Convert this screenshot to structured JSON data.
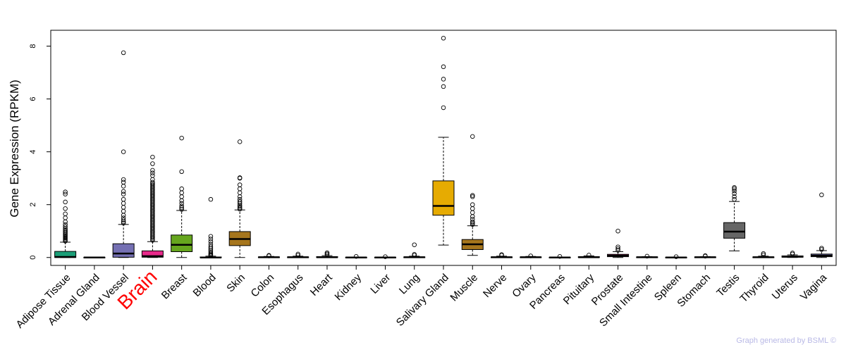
{
  "chart_data": {
    "type": "box",
    "ylabel": "Gene Expression (RPKM)",
    "ylim": [
      -0.3,
      8.6
    ],
    "yticks": [
      0,
      2,
      4,
      6,
      8
    ],
    "highlight": {
      "category": "Brain",
      "color": "#ff0000"
    },
    "categories": [
      {
        "name": "Adipose Tissue",
        "color": "#1b9e77",
        "q1": 0.0,
        "median": 0.02,
        "q3": 0.23,
        "whisker_low": 0.0,
        "whisker_high": 0.58,
        "outliers": [
          0.62,
          0.66,
          0.7,
          0.74,
          0.78,
          0.82,
          0.86,
          0.9,
          0.95,
          1.0,
          1.05,
          1.1,
          1.17,
          1.25,
          1.35,
          1.5,
          1.65,
          1.85,
          2.1,
          2.4,
          2.48
        ]
      },
      {
        "name": "Adrenal Gland",
        "color": "#d95f02",
        "q1": 0.0,
        "median": 0.0,
        "q3": 0.01,
        "whisker_low": 0.0,
        "whisker_high": 0.02,
        "outliers": []
      },
      {
        "name": "Blood Vessel",
        "color": "#7570b3",
        "q1": 0.01,
        "median": 0.15,
        "q3": 0.52,
        "whisker_low": 0.0,
        "whisker_high": 1.25,
        "outliers": [
          1.3,
          1.35,
          1.42,
          1.5,
          1.6,
          1.75,
          1.9,
          2.05,
          2.2,
          2.4,
          2.5,
          2.7,
          2.85,
          2.95,
          4.0,
          7.75
        ]
      },
      {
        "name": "Brain",
        "color": "#e7298a",
        "q1": 0.01,
        "median": 0.05,
        "q3": 0.25,
        "whisker_low": 0.0,
        "whisker_high": 0.6,
        "outliers": [
          0.65,
          0.7,
          0.75,
          0.8,
          0.85,
          0.9,
          0.95,
          1.0,
          1.05,
          1.1,
          1.15,
          1.2,
          1.25,
          1.3,
          1.35,
          1.4,
          1.45,
          1.5,
          1.55,
          1.6,
          1.65,
          1.7,
          1.75,
          1.8,
          1.85,
          1.9,
          1.95,
          2.0,
          2.05,
          2.1,
          2.15,
          2.2,
          2.25,
          2.3,
          2.35,
          2.4,
          2.45,
          2.5,
          2.55,
          2.6,
          2.65,
          2.7,
          2.75,
          2.8,
          2.85,
          2.95,
          3.1,
          3.2,
          3.3,
          3.55,
          3.8
        ]
      },
      {
        "name": "Breast",
        "color": "#66a61e",
        "q1": 0.22,
        "median": 0.48,
        "q3": 0.85,
        "whisker_low": 0.0,
        "whisker_high": 1.78,
        "outliers": [
          1.82,
          1.88,
          1.95,
          2.05,
          2.15,
          2.3,
          2.45,
          2.6,
          3.25,
          4.52
        ]
      },
      {
        "name": "Blood",
        "color": "#e6ab02",
        "q1": 0.0,
        "median": 0.0,
        "q3": 0.02,
        "whisker_low": 0.0,
        "whisker_high": 0.05,
        "outliers": [
          0.07,
          0.1,
          0.13,
          0.17,
          0.22,
          0.28,
          0.35,
          0.42,
          0.5,
          0.6,
          0.7,
          0.8,
          2.2
        ]
      },
      {
        "name": "Skin",
        "color": "#a6761d",
        "q1": 0.45,
        "median": 0.7,
        "q3": 0.98,
        "whisker_low": 0.0,
        "whisker_high": 1.8,
        "outliers": [
          1.83,
          1.88,
          1.93,
          1.98,
          2.05,
          2.12,
          2.2,
          2.3,
          2.45,
          2.6,
          2.75,
          3.0,
          3.02,
          4.38
        ]
      },
      {
        "name": "Colon",
        "color": "#666666",
        "q1": 0.0,
        "median": 0.01,
        "q3": 0.02,
        "whisker_low": 0.0,
        "whisker_high": 0.04,
        "outliers": [
          0.06,
          0.08
        ]
      },
      {
        "name": "Esophagus",
        "color": "#1b9e77",
        "q1": 0.0,
        "median": 0.01,
        "q3": 0.02,
        "whisker_low": 0.0,
        "whisker_high": 0.05,
        "outliers": [
          0.08,
          0.13
        ]
      },
      {
        "name": "Heart",
        "color": "#d95f02",
        "q1": 0.0,
        "median": 0.01,
        "q3": 0.03,
        "whisker_low": 0.0,
        "whisker_high": 0.07,
        "outliers": [
          0.1,
          0.14,
          0.18
        ]
      },
      {
        "name": "Kidney",
        "color": "#7570b3",
        "q1": 0.0,
        "median": 0.0,
        "q3": 0.01,
        "whisker_low": 0.0,
        "whisker_high": 0.02,
        "outliers": [
          0.04
        ]
      },
      {
        "name": "Liver",
        "color": "#e7298a",
        "q1": 0.0,
        "median": 0.0,
        "q3": 0.01,
        "whisker_low": 0.0,
        "whisker_high": 0.02,
        "outliers": [
          0.03
        ]
      },
      {
        "name": "Lung",
        "color": "#66a61e",
        "q1": 0.0,
        "median": 0.01,
        "q3": 0.02,
        "whisker_low": 0.0,
        "whisker_high": 0.05,
        "outliers": [
          0.08,
          0.12,
          0.48
        ]
      },
      {
        "name": "Salivary Gland",
        "color": "#e6ab02",
        "q1": 1.6,
        "median": 1.95,
        "q3": 2.9,
        "whisker_low": 0.47,
        "whisker_high": 4.55,
        "outliers": [
          5.67,
          6.47,
          6.75,
          7.22,
          8.3
        ]
      },
      {
        "name": "Muscle",
        "color": "#a6761d",
        "q1": 0.3,
        "median": 0.5,
        "q3": 0.68,
        "whisker_low": 0.08,
        "whisker_high": 1.2,
        "outliers": [
          1.25,
          1.3,
          1.35,
          1.45,
          1.55,
          1.7,
          1.85,
          2.0,
          2.3,
          2.35,
          4.58
        ]
      },
      {
        "name": "Nerve",
        "color": "#666666",
        "q1": 0.0,
        "median": 0.01,
        "q3": 0.02,
        "whisker_low": 0.0,
        "whisker_high": 0.05,
        "outliers": [
          0.08,
          0.11
        ]
      },
      {
        "name": "Ovary",
        "color": "#1b9e77",
        "q1": 0.0,
        "median": 0.01,
        "q3": 0.02,
        "whisker_low": 0.0,
        "whisker_high": 0.04,
        "outliers": [
          0.06
        ]
      },
      {
        "name": "Pancreas",
        "color": "#d95f02",
        "q1": 0.0,
        "median": 0.0,
        "q3": 0.01,
        "whisker_low": 0.0,
        "whisker_high": 0.02,
        "outliers": [
          0.04
        ]
      },
      {
        "name": "Pituitary",
        "color": "#7570b3",
        "q1": 0.0,
        "median": 0.01,
        "q3": 0.03,
        "whisker_low": 0.0,
        "whisker_high": 0.06,
        "outliers": [
          0.09
        ]
      },
      {
        "name": "Prostate",
        "color": "#e7298a",
        "q1": 0.03,
        "median": 0.07,
        "q3": 0.12,
        "whisker_low": 0.0,
        "whisker_high": 0.22,
        "outliers": [
          0.27,
          0.33,
          0.4,
          1.0
        ]
      },
      {
        "name": "Small Intestine",
        "color": "#66a61e",
        "q1": 0.0,
        "median": 0.01,
        "q3": 0.02,
        "whisker_low": 0.0,
        "whisker_high": 0.03,
        "outliers": [
          0.05
        ]
      },
      {
        "name": "Spleen",
        "color": "#e6ab02",
        "q1": 0.0,
        "median": 0.0,
        "q3": 0.01,
        "whisker_low": 0.0,
        "whisker_high": 0.02,
        "outliers": [
          0.03
        ]
      },
      {
        "name": "Stomach",
        "color": "#a6761d",
        "q1": 0.0,
        "median": 0.01,
        "q3": 0.02,
        "whisker_low": 0.0,
        "whisker_high": 0.03,
        "outliers": [
          0.05,
          0.07
        ]
      },
      {
        "name": "Testis",
        "color": "#666666",
        "q1": 0.73,
        "median": 0.98,
        "q3": 1.32,
        "whisker_low": 0.25,
        "whisker_high": 2.12,
        "outliers": [
          2.2,
          2.3,
          2.42,
          2.52,
          2.6,
          2.65
        ]
      },
      {
        "name": "Thyroid",
        "color": "#1b9e77",
        "q1": 0.0,
        "median": 0.01,
        "q3": 0.02,
        "whisker_low": 0.0,
        "whisker_high": 0.05,
        "outliers": [
          0.1,
          0.15
        ]
      },
      {
        "name": "Uterus",
        "color": "#d95f02",
        "q1": 0.01,
        "median": 0.03,
        "q3": 0.06,
        "whisker_low": 0.0,
        "whisker_high": 0.1,
        "outliers": [
          0.13,
          0.17
        ]
      },
      {
        "name": "Vagina",
        "color": "#7570b3",
        "q1": 0.03,
        "median": 0.07,
        "q3": 0.13,
        "whisker_low": 0.0,
        "whisker_high": 0.26,
        "outliers": [
          0.3,
          0.35,
          2.37
        ]
      }
    ]
  },
  "credit": "Graph generated by BSML ©"
}
